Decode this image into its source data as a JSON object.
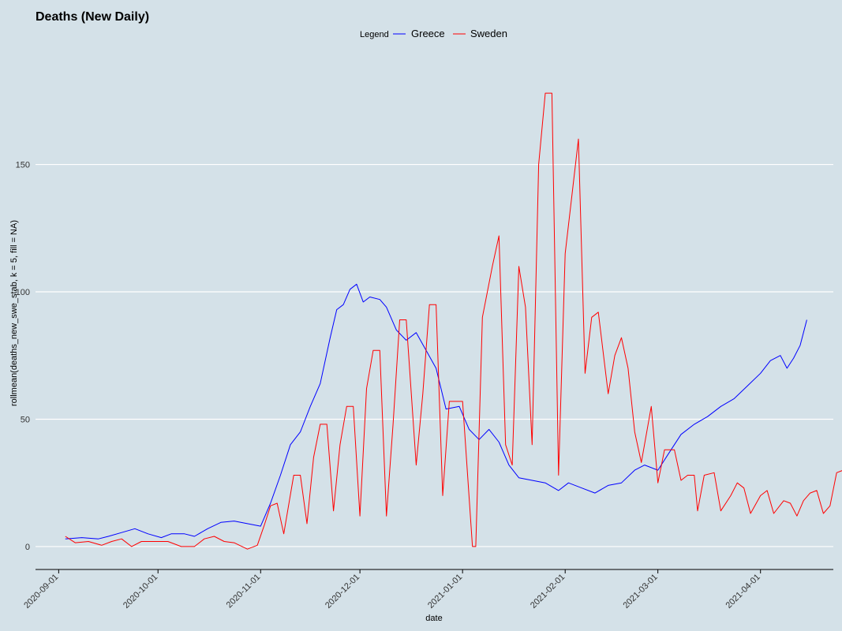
{
  "chart_data": {
    "type": "line",
    "title": "Deaths (New Daily)",
    "xlabel": "date",
    "ylabel": "rollmean(deaths_new_swe_stab, k = 5, fill = NA)",
    "legend_title": "Legend",
    "legend_position": "top",
    "grid": "horizontal major only",
    "xlim": [
      "2020-08-25",
      "2021-04-23"
    ],
    "ylim": [
      -9,
      196
    ],
    "x_ticks": [
      "2020-09-01",
      "2020-10-01",
      "2020-11-01",
      "2020-12-01",
      "2021-01-01",
      "2021-02-01",
      "2021-03-01",
      "2021-04-01"
    ],
    "y_ticks": [
      0,
      50,
      100,
      150
    ],
    "series": [
      {
        "name": "Greece",
        "color": "#0000ff",
        "points": [
          [
            "2020-09-03",
            3
          ],
          [
            "2020-09-08",
            3.5
          ],
          [
            "2020-09-13",
            3
          ],
          [
            "2020-09-16",
            4
          ],
          [
            "2020-09-20",
            5.5
          ],
          [
            "2020-09-24",
            7
          ],
          [
            "2020-09-28",
            5
          ],
          [
            "2020-10-02",
            3.5
          ],
          [
            "2020-10-05",
            5
          ],
          [
            "2020-10-09",
            5
          ],
          [
            "2020-10-12",
            4
          ],
          [
            "2020-10-16",
            7
          ],
          [
            "2020-10-20",
            9.5
          ],
          [
            "2020-10-24",
            10
          ],
          [
            "2020-10-28",
            9
          ],
          [
            "2020-11-01",
            8
          ],
          [
            "2020-11-04",
            17
          ],
          [
            "2020-11-07",
            28
          ],
          [
            "2020-11-10",
            40
          ],
          [
            "2020-11-13",
            45
          ],
          [
            "2020-11-16",
            55
          ],
          [
            "2020-11-19",
            64
          ],
          [
            "2020-11-22",
            82
          ],
          [
            "2020-11-24",
            93
          ],
          [
            "2020-11-26",
            95
          ],
          [
            "2020-11-28",
            101
          ],
          [
            "2020-11-30",
            103
          ],
          [
            "2020-12-02",
            96
          ],
          [
            "2020-12-04",
            98
          ],
          [
            "2020-12-07",
            97
          ],
          [
            "2020-12-09",
            94
          ],
          [
            "2020-12-12",
            85
          ],
          [
            "2020-12-15",
            81
          ],
          [
            "2020-12-18",
            84
          ],
          [
            "2020-12-21",
            77
          ],
          [
            "2020-12-24",
            70
          ],
          [
            "2020-12-27",
            54
          ],
          [
            "2020-12-31",
            55
          ],
          [
            "2021-01-03",
            46
          ],
          [
            "2021-01-06",
            42
          ],
          [
            "2021-01-09",
            46
          ],
          [
            "2021-01-12",
            41
          ],
          [
            "2021-01-15",
            32
          ],
          [
            "2021-01-18",
            27
          ],
          [
            "2021-01-22",
            26
          ],
          [
            "2021-01-26",
            25
          ],
          [
            "2021-01-30",
            22
          ],
          [
            "2021-02-02",
            25
          ],
          [
            "2021-02-06",
            23
          ],
          [
            "2021-02-10",
            21
          ],
          [
            "2021-02-14",
            24
          ],
          [
            "2021-02-18",
            25
          ],
          [
            "2021-02-22",
            30
          ],
          [
            "2021-02-25",
            32
          ],
          [
            "2021-03-01",
            30
          ],
          [
            "2021-03-04",
            36
          ],
          [
            "2021-03-08",
            44
          ],
          [
            "2021-03-12",
            48
          ],
          [
            "2021-03-16",
            51
          ],
          [
            "2021-03-20",
            55
          ],
          [
            "2021-03-24",
            58
          ],
          [
            "2021-03-28",
            63
          ],
          [
            "2021-04-01",
            68
          ],
          [
            "2021-04-04",
            73
          ],
          [
            "2021-04-07",
            75
          ],
          [
            "2021-04-09",
            70
          ],
          [
            "2021-04-11",
            74
          ],
          [
            "2021-04-13",
            79
          ],
          [
            "2021-04-15",
            89
          ]
        ]
      },
      {
        "name": "Sweden",
        "color": "#ff0000",
        "points": [
          [
            "2020-09-03",
            4
          ],
          [
            "2020-09-06",
            1.5
          ],
          [
            "2020-09-10",
            2
          ],
          [
            "2020-09-14",
            0.5
          ],
          [
            "2020-09-17",
            2
          ],
          [
            "2020-09-20",
            3
          ],
          [
            "2020-09-23",
            0
          ],
          [
            "2020-09-26",
            2
          ],
          [
            "2020-09-30",
            2
          ],
          [
            "2020-10-04",
            2
          ],
          [
            "2020-10-08",
            0
          ],
          [
            "2020-10-12",
            0
          ],
          [
            "2020-10-15",
            3
          ],
          [
            "2020-10-18",
            4
          ],
          [
            "2020-10-21",
            2
          ],
          [
            "2020-10-24",
            1.5
          ],
          [
            "2020-10-28",
            -1
          ],
          [
            "2020-10-31",
            0.5
          ],
          [
            "2020-11-02",
            8
          ],
          [
            "2020-11-04",
            16
          ],
          [
            "2020-11-06",
            17
          ],
          [
            "2020-11-08",
            5
          ],
          [
            "2020-11-11",
            28
          ],
          [
            "2020-11-13",
            28
          ],
          [
            "2020-11-15",
            9
          ],
          [
            "2020-11-17",
            35
          ],
          [
            "2020-11-19",
            48
          ],
          [
            "2020-11-21",
            48
          ],
          [
            "2020-11-23",
            14
          ],
          [
            "2020-11-25",
            40
          ],
          [
            "2020-11-27",
            55
          ],
          [
            "2020-11-29",
            55
          ],
          [
            "2020-12-01",
            12
          ],
          [
            "2020-12-03",
            62
          ],
          [
            "2020-12-05",
            77
          ],
          [
            "2020-12-07",
            77
          ],
          [
            "2020-12-09",
            12
          ],
          [
            "2020-12-11",
            48
          ],
          [
            "2020-12-13",
            89
          ],
          [
            "2020-12-15",
            89
          ],
          [
            "2020-12-18",
            32
          ],
          [
            "2020-12-20",
            60
          ],
          [
            "2020-12-22",
            95
          ],
          [
            "2020-12-24",
            95
          ],
          [
            "2020-12-26",
            20
          ],
          [
            "2020-12-28",
            57
          ],
          [
            "2021-01-01",
            57
          ],
          [
            "2021-01-04",
            0
          ],
          [
            "2021-01-05",
            0
          ],
          [
            "2021-01-07",
            90
          ],
          [
            "2021-01-10",
            110
          ],
          [
            "2021-01-12",
            122
          ],
          [
            "2021-01-14",
            40
          ],
          [
            "2021-01-16",
            32
          ],
          [
            "2021-01-18",
            110
          ],
          [
            "2021-01-20",
            94
          ],
          [
            "2021-01-22",
            40
          ],
          [
            "2021-01-24",
            150
          ],
          [
            "2021-01-26",
            178
          ],
          [
            "2021-01-28",
            178
          ],
          [
            "2021-01-30",
            28
          ],
          [
            "2021-02-01",
            115
          ],
          [
            "2021-02-05",
            160
          ],
          [
            "2021-02-07",
            68
          ],
          [
            "2021-02-09",
            90
          ],
          [
            "2021-02-11",
            92
          ],
          [
            "2021-02-14",
            60
          ],
          [
            "2021-02-16",
            75
          ],
          [
            "2021-02-18",
            82
          ],
          [
            "2021-02-20",
            70
          ],
          [
            "2021-02-22",
            45
          ],
          [
            "2021-02-24",
            33
          ],
          [
            "2021-02-27",
            55
          ],
          [
            "2021-03-01",
            25
          ],
          [
            "2021-03-03",
            38
          ],
          [
            "2021-03-06",
            38
          ],
          [
            "2021-03-08",
            26
          ],
          [
            "2021-03-10",
            28
          ],
          [
            "2021-03-12",
            28
          ],
          [
            "2021-03-13",
            14
          ],
          [
            "2021-03-15",
            28
          ],
          [
            "2021-03-18",
            29
          ],
          [
            "2021-03-20",
            14
          ],
          [
            "2021-03-23",
            20
          ],
          [
            "2021-03-25",
            25
          ],
          [
            "2021-03-27",
            23
          ],
          [
            "2021-03-29",
            13
          ],
          [
            "2021-04-01",
            20
          ],
          [
            "2021-04-03",
            22
          ],
          [
            "2021-04-05",
            13
          ],
          [
            "2021-04-08",
            18
          ],
          [
            "2021-04-10",
            17
          ],
          [
            "2021-04-12",
            12
          ],
          [
            "2021-04-14",
            18
          ],
          [
            "2021-04-16",
            21
          ],
          [
            "2021-04-18",
            22
          ],
          [
            "2021-04-20",
            13
          ],
          [
            "2021-04-22",
            16
          ],
          [
            "2021-04-24",
            29
          ],
          [
            "2021-04-26",
            30
          ]
        ]
      }
    ]
  }
}
